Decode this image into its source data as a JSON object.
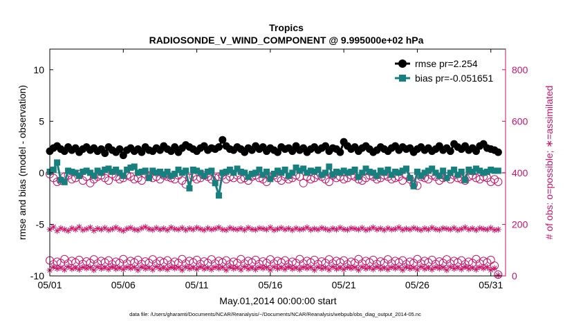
{
  "chart_data": {
    "type": "line",
    "title_line1": "Tropics",
    "title_line2": "RADIOSONDE_V_WIND_COMPONENT @ 9.995000e+02 hPa",
    "xlabel": "May.01,2014 00:00:00 start",
    "ylabel_left": "rmse and bias (model - observation)",
    "ylabel_right": "# of obs: o=possible; ∗=assimilated",
    "footnote": "data file: /Users/gharamti/Documents/NCAR/Reanalysis/~/Documents/NCAR/Reanalysis/webpub/obs_diag_output_2014-05.nc",
    "xlim": [
      1,
      32
    ],
    "ylim_left": [
      -10,
      12
    ],
    "ylim_right": [
      0,
      880
    ],
    "x_ticks": [
      1,
      6,
      11,
      16,
      21,
      26,
      31
    ],
    "x_tick_labels": [
      "05/01",
      "05/06",
      "05/11",
      "05/16",
      "05/21",
      "05/26",
      "05/31"
    ],
    "y_left_ticks": [
      -10,
      -5,
      0,
      5,
      10
    ],
    "y_left_tick_labels": [
      "-10",
      "-5",
      "0",
      "5",
      "10"
    ],
    "y_right_ticks": [
      0,
      200,
      400,
      600,
      800
    ],
    "y_right_tick_labels": [
      "0",
      "200",
      "400",
      "600",
      "800"
    ],
    "legend": [
      {
        "label": "rmse pr=2.254",
        "color": "#000000"
      },
      {
        "label": "bias pr=-0.051651",
        "color": "#17807E"
      }
    ],
    "colors": {
      "rmse": "#000000",
      "bias": "#17807E",
      "counts": "#CC1166",
      "zero_line": "#BBBBBB"
    },
    "x": [
      1,
      1.25,
      1.5,
      1.75,
      2,
      2.25,
      2.5,
      2.75,
      3,
      3.25,
      3.5,
      3.75,
      4,
      4.25,
      4.5,
      4.75,
      5,
      5.25,
      5.5,
      5.75,
      6,
      6.25,
      6.5,
      6.75,
      7,
      7.25,
      7.5,
      7.75,
      8,
      8.25,
      8.5,
      8.75,
      9,
      9.25,
      9.5,
      9.75,
      10,
      10.25,
      10.5,
      10.75,
      11,
      11.25,
      11.5,
      11.75,
      12,
      12.25,
      12.5,
      12.75,
      13,
      13.25,
      13.5,
      13.75,
      14,
      14.25,
      14.5,
      14.75,
      15,
      15.25,
      15.5,
      15.75,
      16,
      16.25,
      16.5,
      16.75,
      17,
      17.25,
      17.5,
      17.75,
      18,
      18.25,
      18.5,
      18.75,
      19,
      19.25,
      19.5,
      19.75,
      20,
      20.25,
      20.5,
      20.75,
      21,
      21.25,
      21.5,
      21.75,
      22,
      22.25,
      22.5,
      22.75,
      23,
      23.25,
      23.5,
      23.75,
      24,
      24.25,
      24.5,
      24.75,
      25,
      25.25,
      25.5,
      25.75,
      26,
      26.25,
      26.5,
      26.75,
      27,
      27.25,
      27.5,
      27.75,
      28,
      28.25,
      28.5,
      28.75,
      29,
      29.25,
      29.5,
      29.75,
      30,
      30.25,
      30.5,
      30.75,
      31,
      31.25,
      31.5
    ],
    "series": [
      {
        "name": "rmse",
        "axis": "left",
        "marker": "circle-filled",
        "values": [
          2.1,
          2.4,
          2.6,
          2.3,
          2.1,
          2.5,
          2.2,
          2.4,
          2.0,
          2.3,
          2.5,
          2.2,
          2.4,
          2.1,
          2.3,
          1.9,
          2.5,
          2.2,
          2.0,
          2.3,
          1.7,
          2.2,
          2.4,
          2.1,
          2.3,
          2.0,
          2.5,
          2.2,
          2.1,
          2.4,
          2.2,
          2.6,
          2.3,
          2.1,
          2.5,
          2.0,
          2.4,
          2.7,
          2.5,
          2.3,
          2.1,
          2.4,
          2.6,
          2.2,
          2.4,
          2.3,
          2.5,
          3.2,
          2.6,
          2.3,
          2.2,
          2.5,
          2.3,
          2.0,
          2.4,
          2.2,
          2.6,
          2.3,
          2.5,
          2.1,
          2.4,
          2.2,
          2.0,
          2.5,
          2.3,
          2.4,
          2.1,
          2.6,
          2.2,
          2.4,
          2.0,
          2.3,
          2.5,
          2.2,
          2.4,
          2.6,
          2.1,
          2.4,
          2.3,
          2.0,
          3.0,
          2.6,
          2.3,
          2.5,
          2.1,
          2.4,
          2.6,
          2.3,
          2.0,
          2.2,
          2.5,
          2.3,
          2.1,
          2.4,
          2.6,
          2.2,
          2.5,
          2.3,
          2.4,
          2.0,
          2.3,
          2.5,
          2.2,
          2.4,
          2.1,
          2.3,
          2.6,
          2.2,
          2.4,
          2.1,
          2.8,
          2.5,
          2.3,
          2.6,
          2.2,
          2.4,
          2.1,
          2.6,
          2.8,
          2.4,
          2.3,
          2.2,
          2.0
        ]
      },
      {
        "name": "bias",
        "axis": "left",
        "marker": "square-filled",
        "values": [
          0.1,
          0.3,
          1.0,
          -0.7,
          -0.9,
          0.2,
          0.1,
          0.0,
          -0.3,
          0.1,
          0.2,
          0.0,
          -0.3,
          0.2,
          0.0,
          0.3,
          0.4,
          0.1,
          0.3,
          0.0,
          -0.3,
          0.3,
          0.5,
          0.6,
          0.0,
          0.1,
          0.2,
          -0.5,
          0.2,
          0.0,
          0.1,
          -0.2,
          0.1,
          -0.3,
          -0.1,
          0.3,
          0.0,
          0.2,
          -1.5,
          0.3,
          0.2,
          0.0,
          -0.3,
          0.1,
          0.2,
          -1.0,
          -2.2,
          0.0,
          0.1,
          0.3,
          0.0,
          0.4,
          0.1,
          0.0,
          -0.4,
          -0.1,
          0.0,
          0.3,
          -0.2,
          0.1,
          -0.6,
          -0.1,
          0.2,
          0.0,
          0.3,
          -0.3,
          0.0,
          0.5,
          0.2,
          0.4,
          0.0,
          0.2,
          0.1,
          0.3,
          -0.2,
          0.0,
          0.6,
          -0.2,
          0.1,
          0.0,
          0.2,
          0.0,
          0.1,
          0.3,
          -0.4,
          0.0,
          0.4,
          0.1,
          0.0,
          -0.3,
          0.2,
          0.0,
          0.3,
          -0.2,
          0.1,
          0.0,
          0.2,
          0.4,
          -0.5,
          -1.3,
          0.1,
          -0.3,
          0.0,
          0.2,
          0.4,
          0.0,
          -0.3,
          0.2,
          -0.5,
          0.0,
          0.3,
          -0.2,
          0.1,
          -0.7,
          0.3,
          0.1,
          0.4,
          0.2,
          0.0,
          0.1,
          0.3,
          0.2,
          0.2
        ]
      },
      {
        "name": "obs possible (high)",
        "axis": "right",
        "marker": "circle-open",
        "values": [
          395,
          380,
          365,
          370,
          385,
          390,
          375,
          380,
          395,
          370,
          385,
          360,
          375,
          385,
          390,
          380,
          370,
          395,
          385,
          375,
          380,
          390,
          385,
          375,
          380,
          370,
          395,
          390,
          380,
          385,
          375,
          390,
          385,
          380,
          375,
          390,
          370,
          355,
          380,
          385,
          375,
          380,
          390,
          385,
          375,
          380,
          385,
          390,
          375,
          385,
          380,
          390,
          375,
          380,
          370,
          385,
          390,
          380,
          375,
          365,
          385,
          390,
          380,
          370,
          385,
          375,
          380,
          390,
          385,
          360,
          385,
          375,
          380,
          390,
          385,
          375,
          365,
          390,
          380,
          385,
          375,
          380,
          390,
          385,
          375,
          370,
          380,
          390,
          385,
          375,
          380,
          390,
          385,
          375,
          380,
          385,
          370,
          390,
          375,
          355,
          350,
          385,
          380,
          375,
          390,
          385,
          370,
          380,
          385,
          375,
          390,
          380,
          375,
          370,
          385,
          390,
          380,
          375,
          385,
          380,
          365,
          375,
          365
        ]
      },
      {
        "name": "obs assimilated (high)",
        "axis": "right",
        "marker": "asterisk",
        "values": [
          180,
          190,
          175,
          185,
          180,
          175,
          185,
          180,
          190,
          178,
          182,
          188,
          176,
          184,
          180,
          186,
          178,
          182,
          188,
          180,
          175,
          183,
          187,
          180,
          178,
          185,
          190,
          182,
          179,
          186,
          180,
          184,
          178,
          188,
          182,
          180,
          186,
          178,
          184,
          180,
          187,
          182,
          178,
          185,
          180,
          183,
          188,
          180,
          178,
          186,
          182,
          180,
          184,
          178,
          187,
          181,
          179,
          185,
          183,
          180,
          188,
          178,
          182,
          186,
          180,
          184,
          178,
          185,
          180,
          182,
          188,
          179,
          183,
          180,
          186,
          182,
          178,
          184,
          180,
          187,
          181,
          179,
          185,
          183,
          180,
          186,
          178,
          182,
          188,
          180,
          184,
          178,
          185,
          180,
          182,
          188,
          179,
          183,
          180,
          186,
          182,
          178,
          184,
          180,
          187,
          181,
          179,
          185,
          183,
          180,
          186,
          178,
          182,
          188,
          180,
          184,
          178,
          185,
          182,
          180,
          186,
          178,
          180
        ]
      },
      {
        "name": "obs possible (low)",
        "axis": "right",
        "marker": "circle-open",
        "values": [
          60,
          45,
          55,
          50,
          65,
          48,
          58,
          52,
          62,
          46,
          56,
          50,
          64,
          48,
          58,
          52,
          60,
          45,
          55,
          50,
          65,
          48,
          58,
          52,
          62,
          46,
          56,
          50,
          64,
          48,
          58,
          52,
          60,
          45,
          55,
          50,
          65,
          48,
          58,
          52,
          62,
          46,
          56,
          50,
          64,
          48,
          58,
          52,
          60,
          45,
          55,
          50,
          65,
          48,
          58,
          52,
          62,
          46,
          56,
          50,
          64,
          48,
          58,
          52,
          60,
          45,
          55,
          50,
          65,
          48,
          58,
          52,
          62,
          46,
          56,
          50,
          64,
          48,
          58,
          52,
          60,
          45,
          55,
          50,
          65,
          48,
          58,
          52,
          62,
          46,
          56,
          50,
          64,
          48,
          58,
          52,
          60,
          45,
          55,
          50,
          65,
          48,
          58,
          52,
          62,
          46,
          56,
          50,
          64,
          48,
          58,
          52,
          60,
          45,
          55,
          50,
          65,
          48,
          58,
          52,
          62,
          40,
          5
        ]
      },
      {
        "name": "obs assimilated (low)",
        "axis": "right",
        "marker": "asterisk",
        "values": [
          22,
          35,
          28,
          32,
          24,
          36,
          27,
          31,
          25,
          34,
          29,
          33,
          23,
          35,
          28,
          32,
          26,
          36,
          27,
          31,
          25,
          34,
          29,
          33,
          23,
          35,
          28,
          32,
          24,
          36,
          27,
          31,
          25,
          34,
          29,
          33,
          23,
          35,
          28,
          32,
          26,
          36,
          27,
          31,
          25,
          34,
          29,
          33,
          23,
          35,
          28,
          32,
          24,
          36,
          27,
          31,
          25,
          34,
          29,
          33,
          23,
          35,
          28,
          32,
          26,
          36,
          27,
          31,
          25,
          34,
          29,
          33,
          23,
          35,
          28,
          32,
          24,
          36,
          27,
          31,
          25,
          34,
          29,
          33,
          23,
          35,
          28,
          32,
          26,
          36,
          27,
          31,
          25,
          34,
          29,
          33,
          23,
          35,
          28,
          32,
          24,
          36,
          27,
          31,
          25,
          34,
          29,
          33,
          23,
          35,
          28,
          32,
          26,
          36,
          27,
          31,
          25,
          34,
          29,
          33,
          23,
          30,
          3
        ]
      }
    ]
  }
}
